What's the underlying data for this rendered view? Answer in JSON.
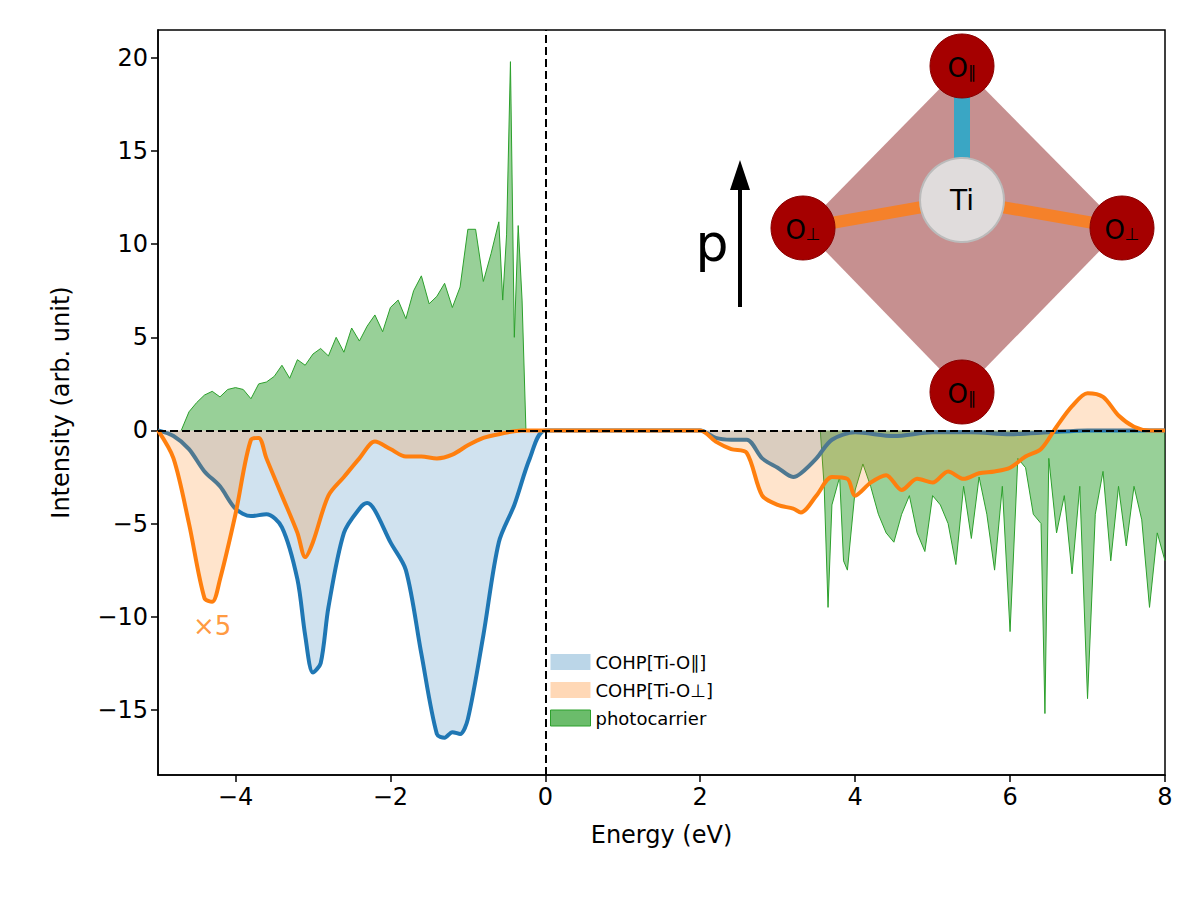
{
  "chart_data": {
    "type": "area",
    "xlabel": "Energy (eV)",
    "ylabel": "Intensity (arb. unit)",
    "xlim": [
      -5,
      8
    ],
    "xticks": [
      -4,
      -2,
      0,
      2,
      4,
      6,
      8
    ],
    "ylim": [
      -18.5,
      21.5
    ],
    "yticks": [
      -15,
      -10,
      -5,
      0,
      5,
      10,
      15,
      20
    ],
    "grid": false,
    "legend": "lower center",
    "vlines": [
      0
    ],
    "hlines": [
      0
    ],
    "series": [
      {
        "name": "COHP[Ti-O∥]",
        "color": "#1f77b4",
        "line_style": "smooth",
        "x": [
          -5,
          -4.8,
          -4.6,
          -4.4,
          -4.2,
          -4.0,
          -3.8,
          -3.6,
          -3.4,
          -3.2,
          -3.1,
          -3.0,
          -2.9,
          -2.8,
          -2.6,
          -2.4,
          -2.3,
          -2.2,
          -2.0,
          -1.8,
          -1.6,
          -1.4,
          -1.3,
          -1.2,
          -1.1,
          -1.0,
          -0.8,
          -0.6,
          -0.4,
          -0.2,
          0,
          1.0,
          2.0,
          2.2,
          2.4,
          2.6,
          2.8,
          3.0,
          3.2,
          3.3,
          3.5,
          3.7,
          4.0,
          4.5,
          5.0,
          5.5,
          6.0,
          6.5,
          7.0,
          8.0
        ],
        "values": [
          0,
          -0.3,
          -1,
          -2.2,
          -3,
          -4.2,
          -4.6,
          -4.5,
          -5.2,
          -8,
          -11,
          -13,
          -12.5,
          -9.5,
          -5.5,
          -4.2,
          -3.9,
          -4.3,
          -6,
          -7.5,
          -12,
          -16.3,
          -16.5,
          -16.2,
          -16.3,
          -15.5,
          -11,
          -6,
          -4,
          -1.5,
          0,
          0,
          0,
          -0.4,
          -0.5,
          -0.5,
          -1.5,
          -2,
          -2.5,
          -2.3,
          -1.5,
          -0.5,
          -0.1,
          -0.3,
          -0.1,
          -0.1,
          -0.2,
          -0.1,
          0,
          0
        ]
      },
      {
        "name": "COHP[Ti-O⊥]",
        "color": "#ff7f0e",
        "line_style": "smooth",
        "x": [
          -5,
          -4.8,
          -4.6,
          -4.4,
          -4.3,
          -4.2,
          -4.0,
          -3.8,
          -3.7,
          -3.6,
          -3.4,
          -3.2,
          -3.1,
          -3.0,
          -2.8,
          -2.6,
          -2.4,
          -2.2,
          -2.0,
          -1.8,
          -1.6,
          -1.4,
          -1.2,
          -1.0,
          -0.8,
          -0.6,
          -0.3,
          0,
          1.0,
          2.0,
          2.2,
          2.4,
          2.6,
          2.8,
          3.0,
          3.2,
          3.3,
          3.5,
          3.7,
          3.9,
          4.0,
          4.2,
          4.4,
          4.6,
          4.8,
          5.0,
          5.2,
          5.4,
          5.6,
          5.8,
          6.0,
          6.2,
          6.4,
          6.6,
          6.8,
          7.0,
          7.2,
          7.4,
          7.6,
          7.8,
          8.0
        ],
        "values": [
          0,
          -1.5,
          -5,
          -9,
          -9.2,
          -8,
          -4.5,
          -0.5,
          -0.4,
          -1.5,
          -3.5,
          -5.5,
          -6.8,
          -6,
          -3.5,
          -2.5,
          -1.5,
          -0.6,
          -1,
          -1.4,
          -1.4,
          -1.5,
          -1.3,
          -0.8,
          -0.4,
          -0.2,
          0,
          0,
          0,
          0,
          -0.6,
          -1,
          -1.2,
          -3.5,
          -4,
          -4.2,
          -4.4,
          -3.5,
          -2.5,
          -2.6,
          -3.5,
          -2.8,
          -2.4,
          -3.2,
          -2.6,
          -2.8,
          -2.2,
          -2.6,
          -2.3,
          -2.2,
          -2,
          -1.4,
          -1,
          0.2,
          1.3,
          2,
          1.8,
          0.8,
          0.2,
          0,
          0
        ]
      },
      {
        "name": "photocarrier",
        "color": "#2ca02c",
        "line_style": "solid",
        "x": [
          -4.7,
          -4.6,
          -4.5,
          -4.4,
          -4.3,
          -4.2,
          -4.1,
          -4.0,
          -3.9,
          -3.8,
          -3.7,
          -3.6,
          -3.5,
          -3.4,
          -3.3,
          -3.2,
          -3.1,
          -3.0,
          -2.9,
          -2.8,
          -2.7,
          -2.6,
          -2.5,
          -2.4,
          -2.3,
          -2.2,
          -2.1,
          -2.0,
          -1.9,
          -1.8,
          -1.7,
          -1.6,
          -1.5,
          -1.4,
          -1.3,
          -1.2,
          -1.1,
          -1.0,
          -0.9,
          -0.8,
          -0.7,
          -0.6,
          -0.55,
          -0.5,
          -0.45,
          -0.4,
          -0.35,
          -0.3,
          -0.25,
          1.6,
          3.55,
          3.6,
          3.65,
          3.7,
          3.8,
          3.85,
          3.9,
          4.0,
          4.1,
          4.2,
          4.3,
          4.4,
          4.5,
          4.6,
          4.7,
          4.8,
          4.9,
          5.0,
          5.1,
          5.2,
          5.3,
          5.4,
          5.5,
          5.6,
          5.7,
          5.8,
          5.9,
          6.0,
          6.1,
          6.2,
          6.3,
          6.4,
          6.45,
          6.5,
          6.6,
          6.7,
          6.8,
          6.9,
          7.0,
          7.1,
          7.2,
          7.3,
          7.4,
          7.5,
          7.6,
          7.7,
          7.8,
          7.9,
          8.0
        ],
        "values": [
          0,
          1,
          1.5,
          1.9,
          2.1,
          1.8,
          2.2,
          2.3,
          2.2,
          1.7,
          2.5,
          2.6,
          2.9,
          3.5,
          2.8,
          3.8,
          3.5,
          4.1,
          4.4,
          4.0,
          5.0,
          4.2,
          5.5,
          4.8,
          5.6,
          6.2,
          5.3,
          6.6,
          7.0,
          6.0,
          7.5,
          8.3,
          6.8,
          7.2,
          7.9,
          6.6,
          7.7,
          10.8,
          10.8,
          8.0,
          9.5,
          11.2,
          7,
          10.5,
          19.8,
          5,
          11,
          7,
          0,
          null,
          0,
          -3,
          -9.5,
          -4,
          -2.5,
          -7,
          -7.5,
          -3.2,
          -1.8,
          -3,
          -4.5,
          -5.5,
          -6,
          -4.5,
          -3.5,
          -5.5,
          -6.5,
          -3.5,
          -4,
          -5,
          -7.2,
          -3,
          -5.8,
          -2.5,
          -4.5,
          -7.5,
          -3,
          -10.8,
          -1.5,
          -2,
          -4.5,
          -5,
          -15.2,
          -1.5,
          -5.5,
          -3.5,
          -7.7,
          -3,
          -14.4,
          -4.5,
          -2.2,
          -7,
          -3,
          -6.2,
          -3,
          -4.8,
          -9.5,
          -5.5,
          -7
        ]
      }
    ],
    "annotations": [
      {
        "text": "×5",
        "x": -4.3,
        "y": -10.5,
        "color": "#ff7f0e"
      }
    ],
    "inset": {
      "center": "Ti",
      "top": "O∥",
      "bottom": "O∥",
      "left": "O⊥",
      "right": "O⊥",
      "arrow": "p"
    }
  }
}
